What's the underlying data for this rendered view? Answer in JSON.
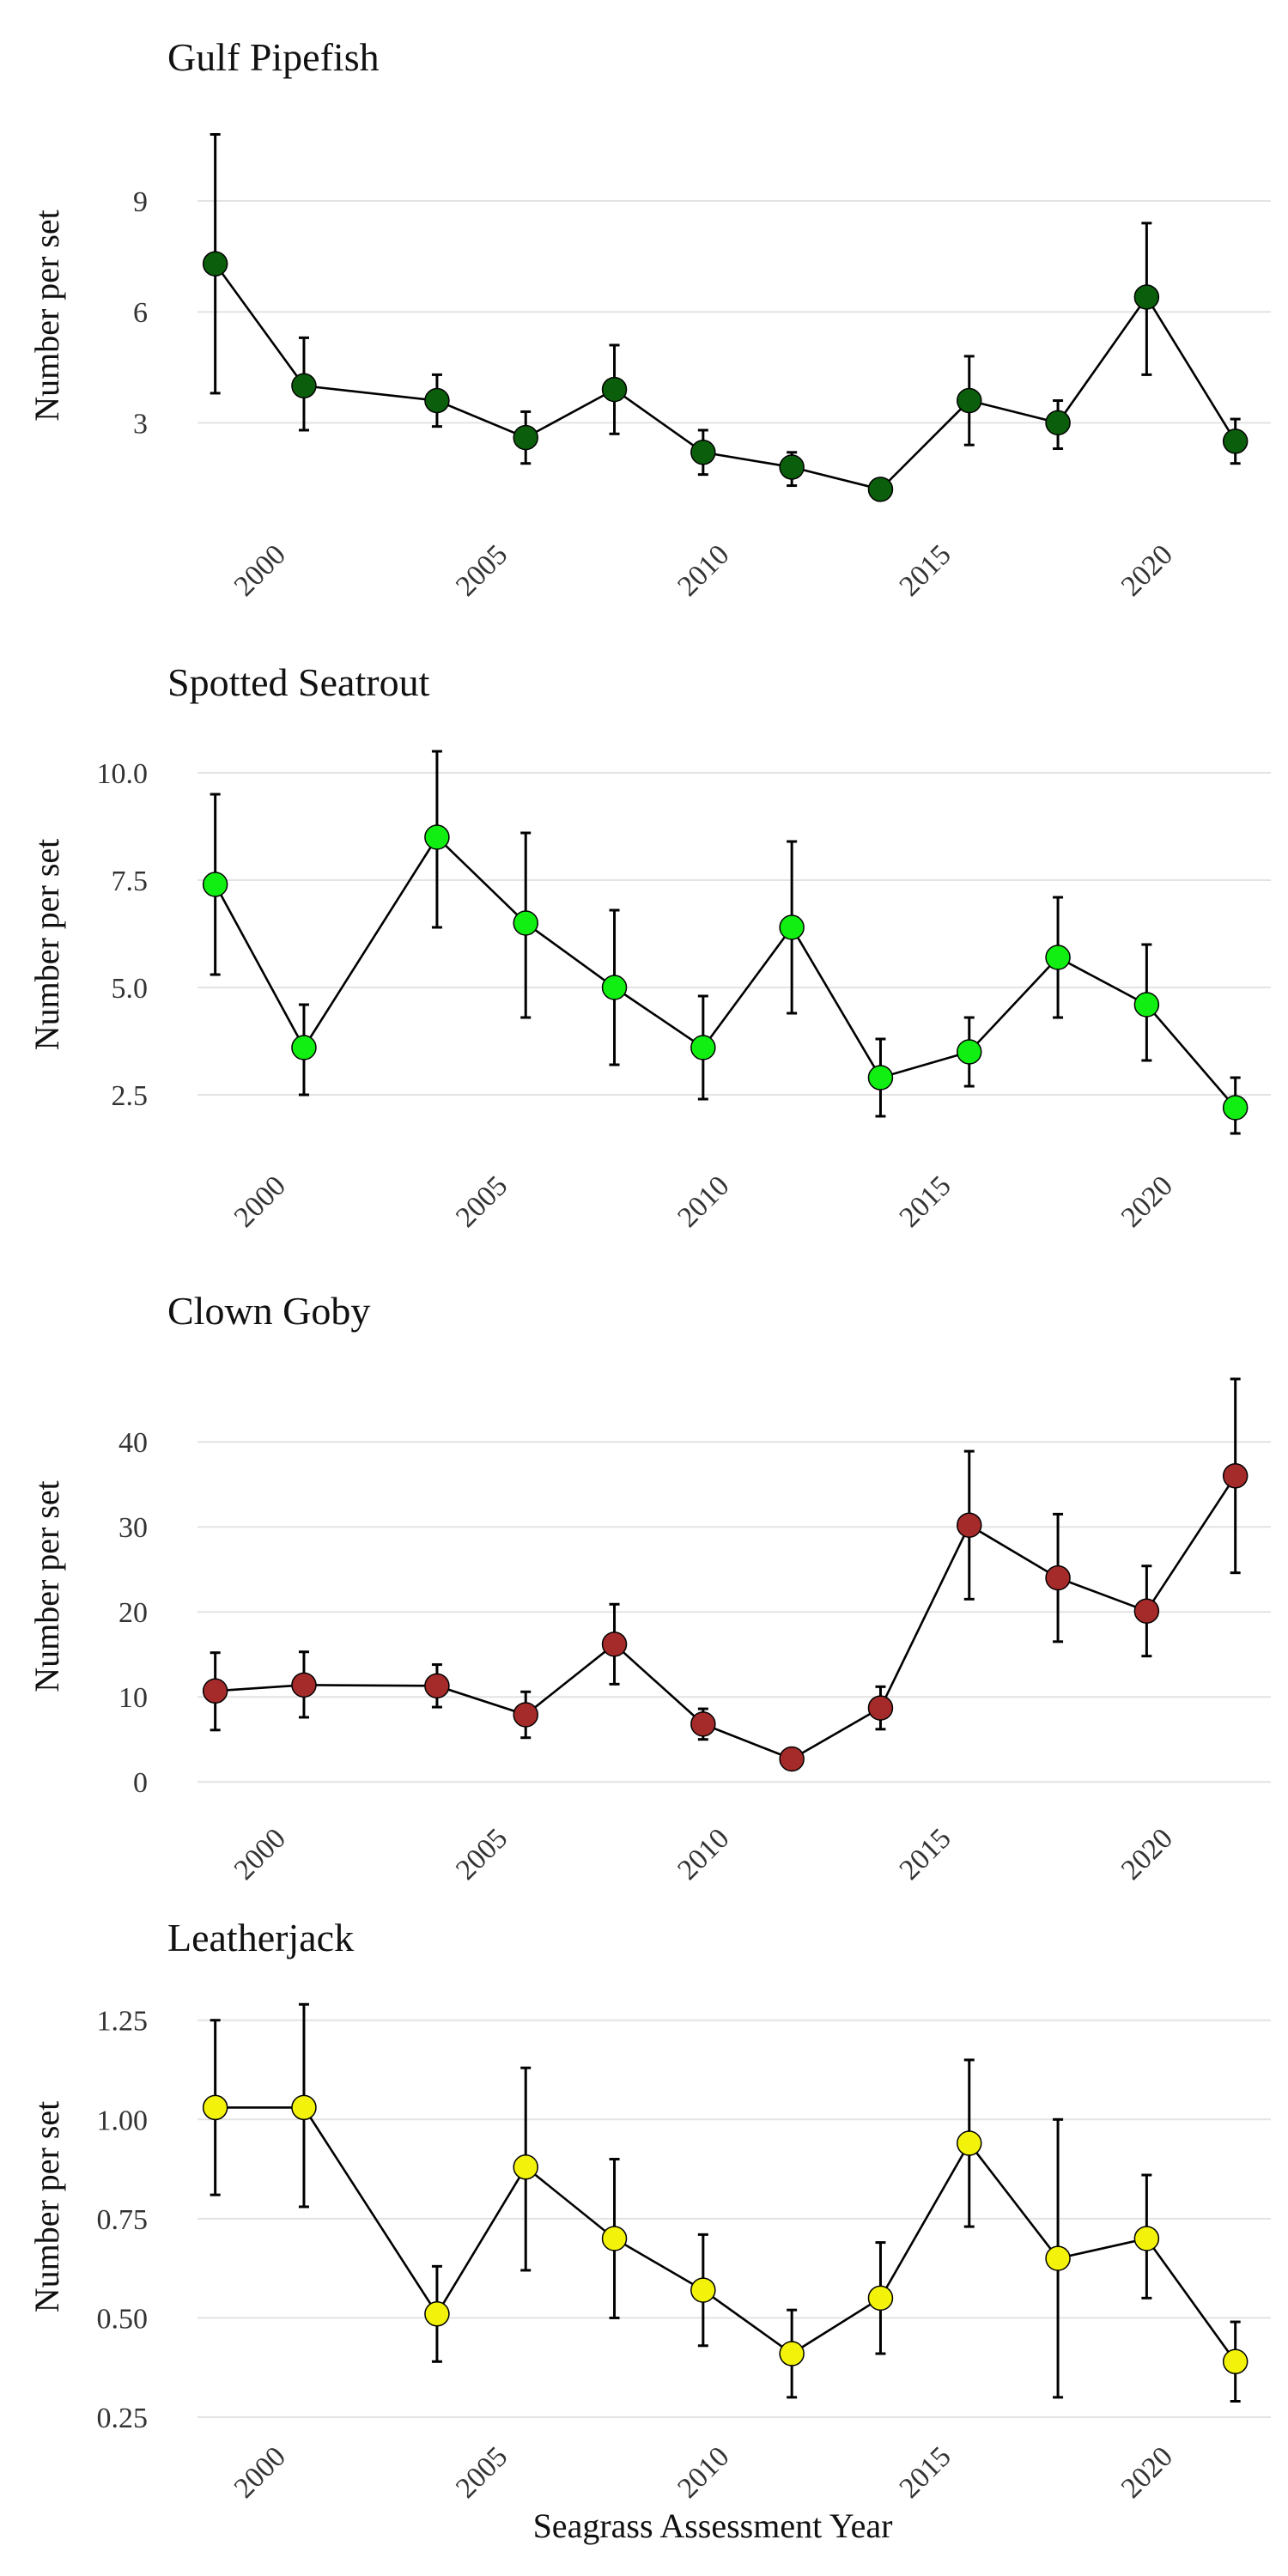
{
  "xlabel": "Seagrass Assessment Year",
  "chart_data": [
    {
      "type": "line",
      "title": "Gulf Pipefish",
      "ylabel": "Number per set",
      "color": "#0b5e0b",
      "ylim": [
        0.5,
        11.3
      ],
      "yticks": [
        3,
        6,
        9
      ],
      "ytick_labels": [
        "3",
        "6",
        "9"
      ],
      "xlim": [
        1998.6,
        2022.8
      ],
      "xticks": [
        2000,
        2005,
        2010,
        2015,
        2020
      ],
      "xtick_labels": [
        "2000",
        "2005",
        "2010",
        "2015",
        "2020"
      ],
      "x": [
        1999,
        2001,
        2004,
        2006,
        2008,
        2010,
        2012,
        2014,
        2016,
        2018,
        2020,
        2022
      ],
      "y": [
        7.3,
        4.0,
        3.6,
        2.6,
        3.9,
        2.2,
        1.8,
        1.2,
        3.6,
        3.0,
        6.4,
        2.5
      ],
      "ylow": [
        3.8,
        2.8,
        2.9,
        1.9,
        2.7,
        1.6,
        1.3,
        1.0,
        2.4,
        2.3,
        4.3,
        1.9
      ],
      "yhigh": [
        10.8,
        5.3,
        4.3,
        3.3,
        5.1,
        2.8,
        2.2,
        1.4,
        4.8,
        3.6,
        8.4,
        3.1
      ]
    },
    {
      "type": "line",
      "title": "Spotted Seatrout",
      "ylabel": "Number per set",
      "color": "#11ee11",
      "ylim": [
        1.3,
        10.7
      ],
      "yticks": [
        2.5,
        5.0,
        7.5,
        10.0
      ],
      "ytick_labels": [
        "2.5",
        "5.0",
        "7.5",
        "10.0"
      ],
      "xlim": [
        1998.6,
        2022.8
      ],
      "xticks": [
        2000,
        2005,
        2010,
        2015,
        2020
      ],
      "xtick_labels": [
        "2000",
        "2005",
        "2010",
        "2015",
        "2020"
      ],
      "x": [
        1999,
        2001,
        2004,
        2006,
        2008,
        2010,
        2012,
        2014,
        2016,
        2018,
        2020,
        2022
      ],
      "y": [
        7.4,
        3.6,
        8.5,
        6.5,
        5.0,
        3.6,
        6.4,
        2.9,
        3.5,
        5.7,
        4.6,
        2.2
      ],
      "ylow": [
        5.3,
        2.5,
        6.4,
        4.3,
        3.2,
        2.4,
        4.4,
        2.0,
        2.7,
        4.3,
        3.3,
        1.6
      ],
      "yhigh": [
        9.5,
        4.6,
        10.5,
        8.6,
        6.8,
        4.8,
        8.4,
        3.8,
        4.3,
        7.1,
        6.0,
        2.9
      ]
    },
    {
      "type": "line",
      "title": "Clown Goby",
      "ylabel": "Number per set",
      "color": "#a52a2a",
      "ylim": [
        -2,
        48
      ],
      "yticks": [
        0,
        10,
        20,
        30,
        40
      ],
      "ytick_labels": [
        "0",
        "10",
        "20",
        "30",
        "40"
      ],
      "xlim": [
        1998.6,
        2022.8
      ],
      "xticks": [
        2000,
        2005,
        2010,
        2015,
        2020
      ],
      "xtick_labels": [
        "2000",
        "2005",
        "2010",
        "2015",
        "2020"
      ],
      "x": [
        1999,
        2001,
        2004,
        2006,
        2008,
        2010,
        2012,
        2014,
        2016,
        2018,
        2020,
        2022
      ],
      "y": [
        10.7,
        11.4,
        11.3,
        7.9,
        16.2,
        6.8,
        2.7,
        8.7,
        30.2,
        24.0,
        20.1,
        36.0
      ],
      "ylow": [
        6.1,
        7.6,
        8.8,
        5.2,
        11.5,
        5.0,
        1.8,
        6.2,
        21.5,
        16.5,
        14.8,
        24.6
      ],
      "yhigh": [
        15.2,
        15.3,
        13.8,
        10.6,
        20.9,
        8.6,
        3.6,
        11.2,
        38.9,
        31.5,
        25.4,
        47.4
      ]
    },
    {
      "type": "line",
      "title": "Leatherjack",
      "ylabel": "Number per set",
      "color": "#f2f20a",
      "ylim": [
        0.25,
        1.31
      ],
      "yticks": [
        0.25,
        0.5,
        0.75,
        1.0,
        1.25
      ],
      "ytick_labels": [
        "0.25",
        "0.50",
        "0.75",
        "1.00",
        "1.25"
      ],
      "xlim": [
        1998.6,
        2022.8
      ],
      "xticks": [
        2000,
        2005,
        2010,
        2015,
        2020
      ],
      "xtick_labels": [
        "2000",
        "2005",
        "2010",
        "2015",
        "2020"
      ],
      "x": [
        1999,
        2001,
        2004,
        2006,
        2008,
        2010,
        2012,
        2014,
        2016,
        2018,
        2020,
        2022
      ],
      "y": [
        1.03,
        1.03,
        0.51,
        0.88,
        0.7,
        0.57,
        0.41,
        0.55,
        0.94,
        0.65,
        0.7,
        0.39
      ],
      "ylow": [
        0.81,
        0.78,
        0.39,
        0.62,
        0.5,
        0.43,
        0.3,
        0.41,
        0.73,
        0.3,
        0.55,
        0.29
      ],
      "yhigh": [
        1.25,
        1.29,
        0.63,
        1.13,
        0.9,
        0.71,
        0.52,
        0.69,
        1.15,
        1.0,
        0.86,
        0.49
      ]
    }
  ]
}
